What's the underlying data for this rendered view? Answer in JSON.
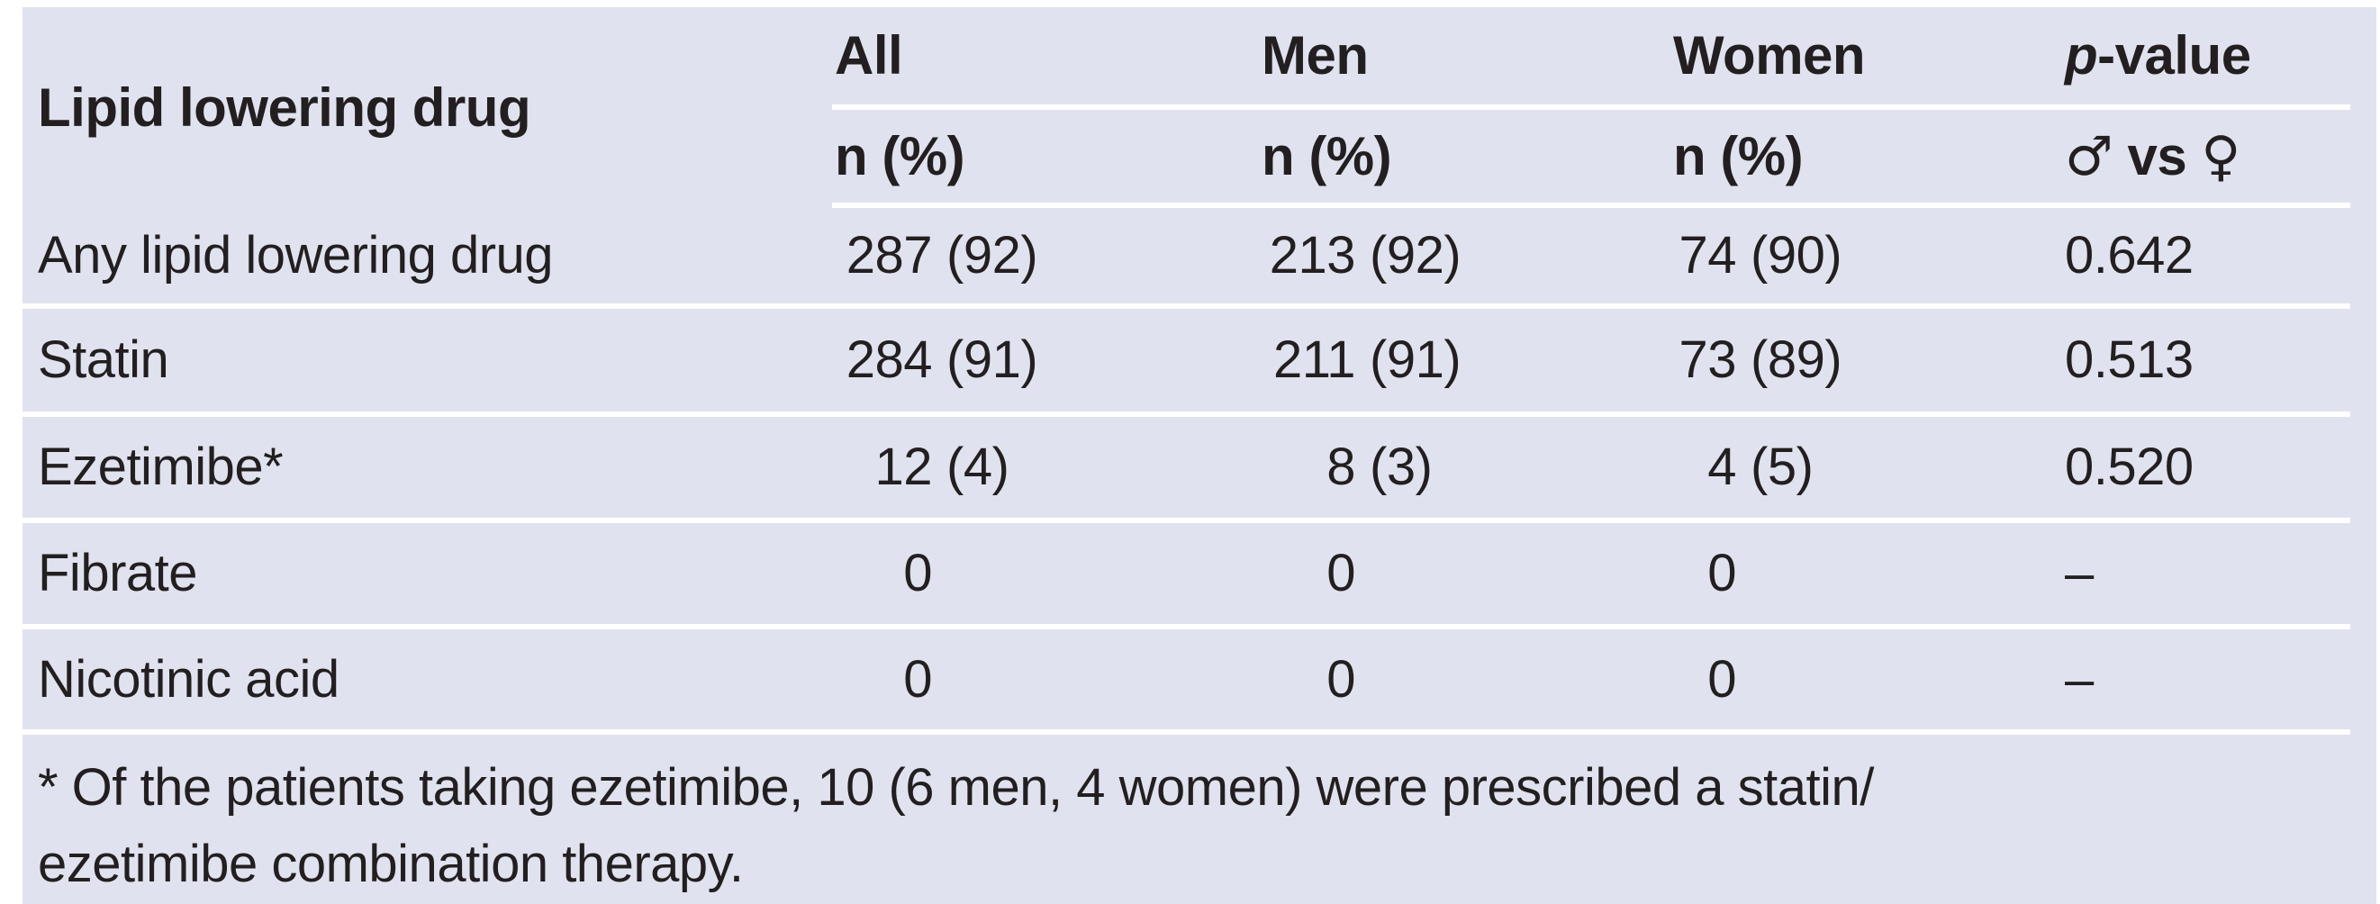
{
  "colors": {
    "page_background": "#ffffff",
    "panel_background": "#e0e2ef",
    "rule_line": "#ffffff",
    "text": "#231f20"
  },
  "header": {
    "col1": "Lipid lowering drug",
    "all_label": "All",
    "men_label": "Men",
    "women_label": "Women",
    "pvalue_italic": "p",
    "pvalue_rest": "-value",
    "all_sub": "n (%)",
    "men_sub": "n (%)",
    "women_sub": "n (%)",
    "p_sub_male": "♂",
    "p_sub_vs": " vs ",
    "p_sub_female": "♀"
  },
  "rows": [
    {
      "label": "Any lipid lowering drug",
      "all_n": "287",
      "all_p": "(92)",
      "men_n": "213",
      "men_p": "(92)",
      "women_n": "74",
      "women_p": "(90)",
      "pvalue": "0.642"
    },
    {
      "label": "Statin",
      "all_n": "284",
      "all_p": "(91)",
      "men_n": "211",
      "men_p": "(91)",
      "women_n": "73",
      "women_p": "(89)",
      "pvalue": "0.513"
    },
    {
      "label": "Ezetimibe*",
      "all_n": "12",
      "all_p": "(4)",
      "men_n": "8",
      "men_p": "(3)",
      "women_n": "4",
      "women_p": "(5)",
      "pvalue": "0.520"
    },
    {
      "label": "Fibrate",
      "all_n": "0",
      "all_p": "",
      "men_n": "0",
      "men_p": "",
      "women_n": "0",
      "women_p": "",
      "pvalue": "–"
    },
    {
      "label": "Nicotinic acid",
      "all_n": "0",
      "all_p": "",
      "men_n": "0",
      "men_p": "",
      "women_n": "0",
      "women_p": "",
      "pvalue": "–"
    }
  ],
  "footnote": {
    "line1": "* Of the patients taking ezetimibe, 10 (6 men, 4 women) were prescribed a statin/",
    "line2": "ezetimibe combination therapy."
  }
}
